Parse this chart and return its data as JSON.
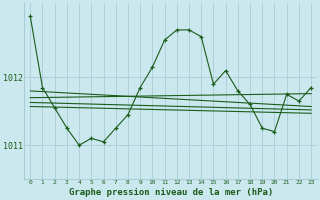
{
  "title": "Graphe pression niveau de la mer (hPa)",
  "background_color": "#cce8ef",
  "grid_color": "#aaccd6",
  "line_color": "#1a5c1a",
  "x_labels": [
    "0",
    "1",
    "2",
    "3",
    "4",
    "5",
    "6",
    "7",
    "8",
    "9",
    "10",
    "11",
    "12",
    "13",
    "14",
    "15",
    "16",
    "17",
    "18",
    "19",
    "20",
    "21",
    "22",
    "23"
  ],
  "xlim": [
    -0.5,
    23.5
  ],
  "ylim": [
    1010.5,
    1013.1
  ],
  "yticks": [
    1011,
    1012
  ],
  "main_line": [
    1012.9,
    1011.85,
    1011.55,
    1011.25,
    1011.0,
    1011.1,
    1011.05,
    1011.25,
    1011.45,
    1011.85,
    1012.15,
    1012.55,
    1012.7,
    1012.7,
    1012.6,
    1011.9,
    1012.1,
    1011.8,
    1011.6,
    1011.25,
    1011.2,
    1011.75,
    1011.65,
    1011.85
  ],
  "trend_lines": [
    [
      [
        0,
        23
      ],
      [
        1011.8,
        1011.57
      ]
    ],
    [
      [
        0,
        23
      ],
      [
        1011.7,
        1011.76
      ]
    ],
    [
      [
        0,
        23
      ],
      [
        1011.63,
        1011.52
      ]
    ],
    [
      [
        0,
        23
      ],
      [
        1011.57,
        1011.47
      ]
    ]
  ]
}
